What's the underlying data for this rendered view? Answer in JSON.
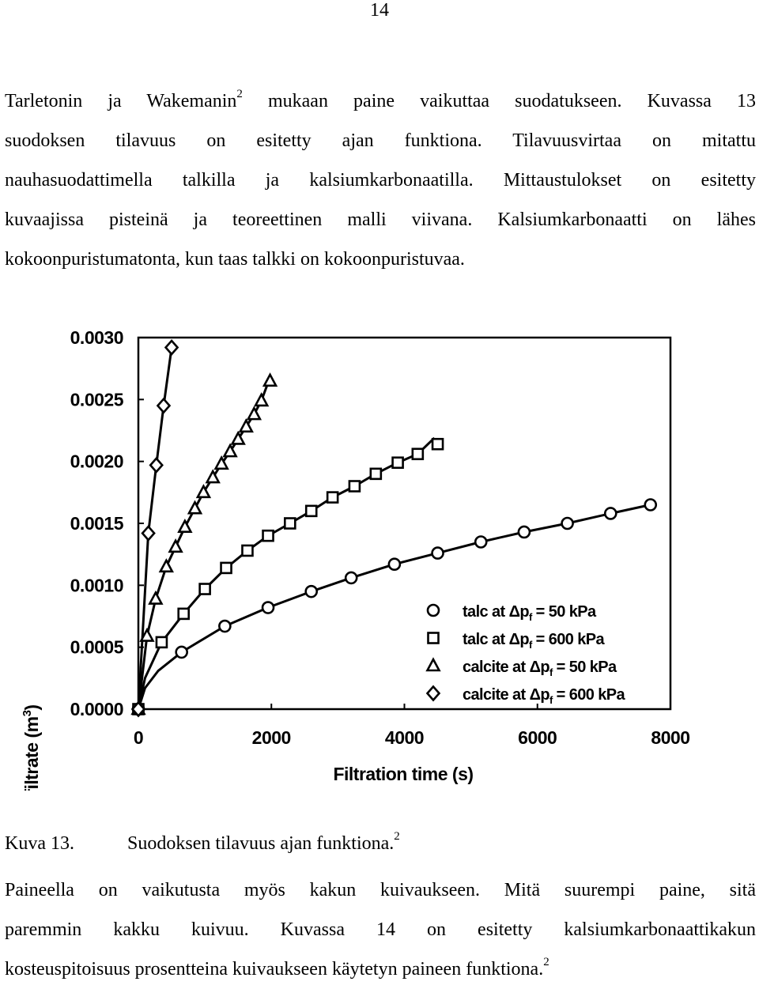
{
  "page_number": "14",
  "paragraph1": [
    {
      "before_sup": "Tarletonin ja Wakemanin",
      "sup": "2",
      "after_sup": " mukaan paine vaikuttaa suodatukseen. Kuvassa 13"
    },
    {
      "text": "suodoksen tilavuus on esitetty ajan funktiona. Tilavuusvirtaa on mitattu"
    },
    {
      "text": "nauhasuodattimella talkilla ja kalsiumkarbonaatilla. Mittaustulokset on esitetty"
    },
    {
      "text": "kuvaajissa pisteinä ja teoreettinen malli viivana. Kalsiumkarbonaatti on lähes"
    },
    {
      "text": "kokoonpuristumatonta, kun taas talkki on kokoonpuristuvaa."
    }
  ],
  "caption": {
    "label": "Kuva 13.",
    "text": "Suodoksen tilavuus ajan funktiona.",
    "sup": "2"
  },
  "paragraph2": [
    {
      "text": "Paineella on vaikutusta myös kakun kuivaukseen. Mitä suurempi paine, sitä"
    },
    {
      "text": "paremmin kakku kuivuu. Kuvassa 14 on esitetty kalsiumkarbonaattikakun"
    },
    {
      "before_sup": "kosteuspitoisuus prosentteina kuivaukseen käytetyn paineen funktiona.",
      "sup": "2",
      "after_sup": ""
    }
  ],
  "chart_data": {
    "type": "scatter",
    "xlabel": "Filtration time (s)",
    "ylabel_main": "Cumulative volume of filtrate (m",
    "ylabel_sup": "3",
    "ylabel_end": ")",
    "xlim": [
      0,
      8000
    ],
    "ylim": [
      0,
      0.003
    ],
    "x_ticks": [
      0,
      2000,
      4000,
      6000,
      8000
    ],
    "x_tick_labels": [
      "0",
      "2000",
      "4000",
      "6000",
      "8000"
    ],
    "y_ticks": [
      0,
      0.0005,
      0.001,
      0.0015,
      0.002,
      0.0025,
      0.003
    ],
    "y_tick_labels": [
      "0.0000",
      "0.0005",
      "0.0010",
      "0.0015",
      "0.0020",
      "0.0025",
      "0.0030"
    ],
    "grid": false,
    "legend_position": "bottom-right",
    "series": [
      {
        "marker": "circle",
        "legend_pre": "talc at ",
        "legend_sub": "f",
        "legend_post": " = 50 kPa",
        "points": [
          [
            0,
            0
          ],
          [
            650,
            0.00046
          ],
          [
            1300,
            0.00067
          ],
          [
            1950,
            0.00082
          ],
          [
            2600,
            0.00095
          ],
          [
            3200,
            0.00106
          ],
          [
            3850,
            0.00117
          ],
          [
            4500,
            0.00126
          ],
          [
            5150,
            0.00135
          ],
          [
            5800,
            0.00143
          ],
          [
            6450,
            0.0015
          ],
          [
            7100,
            0.00158
          ],
          [
            7700,
            0.00165
          ]
        ],
        "curve": [
          [
            0,
            0
          ],
          [
            100,
            0.00017
          ],
          [
            300,
            0.00031
          ],
          [
            650,
            0.00046
          ],
          [
            1300,
            0.00067
          ],
          [
            1950,
            0.00082
          ],
          [
            2600,
            0.00095
          ],
          [
            3200,
            0.00106
          ],
          [
            3850,
            0.00117
          ],
          [
            4500,
            0.00126
          ],
          [
            5150,
            0.00135
          ],
          [
            5800,
            0.00143
          ],
          [
            6450,
            0.0015
          ],
          [
            7100,
            0.00158
          ],
          [
            7700,
            0.00165
          ]
        ]
      },
      {
        "marker": "square",
        "legend_pre": "talc at ",
        "legend_sub": "f",
        "legend_post": " = 600 kPa",
        "points": [
          [
            0,
            0
          ],
          [
            350,
            0.00054
          ],
          [
            680,
            0.00077
          ],
          [
            1000,
            0.00097
          ],
          [
            1320,
            0.00114
          ],
          [
            1640,
            0.00128
          ],
          [
            1950,
            0.0014
          ],
          [
            2280,
            0.0015
          ],
          [
            2600,
            0.0016
          ],
          [
            2920,
            0.00171
          ],
          [
            3250,
            0.0018
          ],
          [
            3570,
            0.0019
          ],
          [
            3900,
            0.00199
          ],
          [
            4200,
            0.00206
          ],
          [
            4500,
            0.00214
          ]
        ],
        "curve": [
          [
            0,
            0
          ],
          [
            100,
            0.00025
          ],
          [
            350,
            0.00054
          ],
          [
            680,
            0.00077
          ],
          [
            1000,
            0.00097
          ],
          [
            1320,
            0.00114
          ],
          [
            1640,
            0.00128
          ],
          [
            1950,
            0.0014
          ],
          [
            2280,
            0.0015
          ],
          [
            2600,
            0.0016
          ],
          [
            2920,
            0.00171
          ],
          [
            3250,
            0.0018
          ],
          [
            3570,
            0.0019
          ],
          [
            3900,
            0.00199
          ],
          [
            4200,
            0.00206
          ],
          [
            4450,
            0.00219
          ]
        ]
      },
      {
        "marker": "triangle",
        "legend_pre": "calcite at ",
        "legend_sub": "f",
        "legend_post": " = 50 kPa",
        "points": [
          [
            0,
            0
          ],
          [
            130,
            0.00059
          ],
          [
            260,
            0.00089
          ],
          [
            420,
            0.00115
          ],
          [
            560,
            0.00131
          ],
          [
            700,
            0.00147
          ],
          [
            850,
            0.00162
          ],
          [
            980,
            0.00175
          ],
          [
            1120,
            0.00187
          ],
          [
            1250,
            0.00198
          ],
          [
            1380,
            0.00208
          ],
          [
            1500,
            0.00218
          ],
          [
            1620,
            0.00228
          ],
          [
            1740,
            0.00238
          ],
          [
            1850,
            0.00249
          ],
          [
            1980,
            0.00265
          ]
        ],
        "curve": [
          [
            0,
            0
          ],
          [
            130,
            0.00059
          ],
          [
            260,
            0.00089
          ],
          [
            420,
            0.00115
          ],
          [
            560,
            0.00131
          ],
          [
            700,
            0.00147
          ],
          [
            850,
            0.00162
          ],
          [
            980,
            0.00175
          ],
          [
            1120,
            0.00187
          ],
          [
            1250,
            0.00198
          ],
          [
            1380,
            0.00208
          ],
          [
            1500,
            0.00218
          ],
          [
            1620,
            0.00228
          ],
          [
            1740,
            0.00238
          ],
          [
            1850,
            0.00249
          ],
          [
            1960,
            0.00265
          ]
        ]
      },
      {
        "marker": "diamond",
        "legend_pre": "calcite at ",
        "legend_sub": "f",
        "legend_post": " = 600 kPa",
        "points": [
          [
            0,
            0
          ],
          [
            150,
            0.00142
          ],
          [
            270,
            0.00197
          ],
          [
            380,
            0.00245
          ],
          [
            500,
            0.00292
          ]
        ],
        "curve": [
          [
            0,
            0
          ],
          [
            150,
            0.00142
          ],
          [
            270,
            0.00197
          ],
          [
            380,
            0.00245
          ],
          [
            500,
            0.00292
          ]
        ]
      }
    ]
  }
}
